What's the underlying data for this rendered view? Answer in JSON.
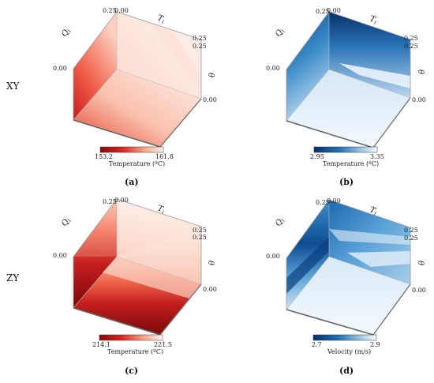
{
  "row_labels": [
    "XY",
    "ZY"
  ],
  "axis_labels": {
    "q": "Q",
    "q_sub": "i",
    "t": "T",
    "t_sub": "i",
    "theta": "θ"
  },
  "panels": [
    {
      "caption": "(a)",
      "palette": "reds",
      "ticks": {
        "top_left": "0.25",
        "top_right": "0.00",
        "left": "0.00",
        "right_top": "0.25",
        "right_top2": "0.25",
        "right_bottom": "0.00"
      },
      "colorbar": {
        "min": "153.2",
        "max": "161.8",
        "label": "Temperature (ºC)"
      }
    },
    {
      "caption": "(b)",
      "palette": "blues",
      "ticks": {
        "top_left": "0.25",
        "top_right": "0.00",
        "left": "0.00",
        "right_top": "0.25",
        "right_top2": "0.25",
        "right_bottom": "0.00"
      },
      "colorbar": {
        "min": "2.95",
        "max": "3.35",
        "label": "Temperature (ºC)"
      }
    },
    {
      "caption": "(c)",
      "palette": "reds",
      "ticks": {
        "top_left": "0.25",
        "top_right": "0.00",
        "left": "0.00",
        "right_top": "0.25",
        "right_top2": "0.25",
        "right_bottom": "0.00"
      },
      "colorbar": {
        "min": "214.1",
        "max": "221.5",
        "label": "Temperature (ºC)"
      }
    },
    {
      "caption": "(d)",
      "palette": "blues",
      "ticks": {
        "top_left": "0.25",
        "top_right": "0.00",
        "left": "0.00",
        "right_top": "0.25",
        "right_top2": "0.25",
        "right_bottom": "0.00"
      },
      "colorbar": {
        "min": "2.7",
        "max": "2.9",
        "label": "Velocity (m/s)"
      }
    }
  ],
  "colors": {
    "reds_dark": "#8b0a0a",
    "reds_mid": "#e0362b",
    "reds_light": "#fde6dc",
    "reds_white": "#fff4ee",
    "blues_dark": "#08306b",
    "blues_mid": "#2f7fc1",
    "blues_light": "#c6dcef",
    "blues_white": "#eef5fb"
  }
}
